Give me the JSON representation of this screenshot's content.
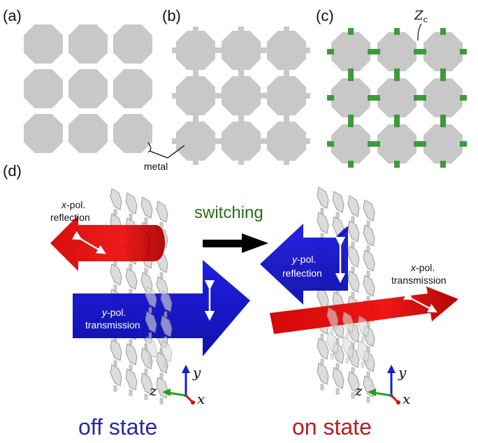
{
  "panels": {
    "a": "(a)",
    "b": "(b)",
    "c": "(c)",
    "d": "(d)"
  },
  "annotations": {
    "metal": "metal",
    "zc_main": "Z",
    "zc_sub": "c"
  },
  "left_state": {
    "reflection_line1_italic": "x",
    "reflection_line1_rest": "-pol.",
    "reflection_line2": "reflection",
    "transmission_line1_italic": "y",
    "transmission_line1_rest": "-pol.",
    "transmission_line2": "transmission",
    "label": "off state",
    "label_color": "#2a2aa6"
  },
  "right_state": {
    "reflection_line1_italic": "y",
    "reflection_line1_rest": "-pol.",
    "reflection_line2": "reflection",
    "transmission_line1_italic": "x",
    "transmission_line1_rest": "-pol.",
    "transmission_line2": "transmission",
    "label": "on state",
    "label_color": "#b02020"
  },
  "switching": "switching",
  "axes": {
    "x": "x",
    "y": "y",
    "z": "z"
  },
  "colors": {
    "metal": "#c8c8c8",
    "switch": "#3f9a3c",
    "x_pol": "#e01010",
    "y_pol": "#1010d0",
    "switching_text": "#2e6a16",
    "axis_x": "#d01010",
    "axis_y": "#1020d0",
    "axis_z": "#20a020"
  }
}
